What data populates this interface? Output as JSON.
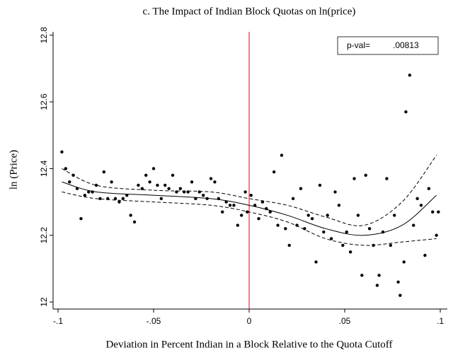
{
  "chart_data": {
    "type": "scatter",
    "title": "c. The Impact of Indian Block Quotas on ln(price)",
    "xlabel": "Deviation in Percent Indian in a Block Relative to the Quota Cutoff",
    "ylabel": "ln (Price)",
    "annotation": {
      "label": "p-val=",
      "value": ".00813"
    },
    "color": "#000000",
    "xlim": [
      -0.1026,
      0.1037
    ],
    "ylim": [
      11.979,
      12.81
    ],
    "xticks": [
      {
        "value": -0.1,
        "label": "-.1"
      },
      {
        "value": -0.05,
        "label": "-.05"
      },
      0,
      {
        "value": 0.05,
        "label": ".05"
      },
      {
        "value": 0.1,
        "label": ".1"
      }
    ],
    "yticks": [
      12,
      12.2,
      12.4,
      12.6,
      12.8
    ],
    "vline": {
      "value": 0,
      "color": "#d9304a"
    },
    "x": [
      -0.098,
      -0.096,
      -0.094,
      -0.092,
      -0.09,
      -0.088,
      -0.086,
      -0.084,
      -0.082,
      -0.08,
      -0.078,
      -0.076,
      -0.074,
      -0.072,
      -0.07,
      -0.068,
      -0.066,
      -0.064,
      -0.062,
      -0.06,
      -0.058,
      -0.056,
      -0.054,
      -0.052,
      -0.05,
      -0.048,
      -0.046,
      -0.044,
      -0.042,
      -0.04,
      -0.038,
      -0.036,
      -0.034,
      -0.032,
      -0.03,
      -0.028,
      -0.026,
      -0.024,
      -0.022,
      -0.02,
      -0.018,
      -0.016,
      -0.014,
      -0.012,
      -0.01,
      -0.008,
      -0.006,
      -0.004,
      -0.002,
      -0.001,
      0.001,
      0.003,
      0.005,
      0.007,
      0.009,
      0.011,
      0.013,
      0.015,
      0.017,
      0.019,
      0.021,
      0.023,
      0.025,
      0.027,
      0.029,
      0.031,
      0.033,
      0.035,
      0.037,
      0.039,
      0.041,
      0.043,
      0.045,
      0.047,
      0.049,
      0.051,
      0.053,
      0.055,
      0.057,
      0.059,
      0.061,
      0.063,
      0.065,
      0.067,
      0.068,
      0.07,
      0.072,
      0.074,
      0.076,
      0.078,
      0.079,
      0.081,
      0.082,
      0.084,
      0.086,
      0.088,
      0.09,
      0.092,
      0.094,
      0.096,
      0.098,
      0.099
    ],
    "values": [
      12.45,
      12.4,
      12.36,
      12.38,
      12.34,
      12.25,
      12.32,
      12.33,
      12.33,
      12.35,
      12.31,
      12.39,
      12.31,
      12.36,
      12.31,
      12.3,
      12.31,
      12.32,
      12.26,
      12.24,
      12.35,
      12.34,
      12.38,
      12.36,
      12.4,
      12.35,
      12.31,
      12.35,
      12.34,
      12.38,
      12.33,
      12.34,
      12.33,
      12.33,
      12.36,
      12.31,
      12.33,
      12.32,
      12.31,
      12.37,
      12.36,
      12.31,
      12.27,
      12.3,
      12.29,
      12.29,
      12.23,
      12.26,
      12.33,
      12.27,
      12.32,
      12.29,
      12.25,
      12.3,
      12.28,
      12.27,
      12.39,
      12.23,
      12.44,
      12.22,
      12.17,
      12.31,
      12.23,
      12.34,
      12.22,
      12.26,
      12.25,
      12.12,
      12.35,
      12.21,
      12.26,
      12.19,
      12.33,
      12.29,
      12.17,
      12.21,
      12.15,
      12.37,
      12.26,
      12.08,
      12.38,
      12.22,
      12.17,
      12.05,
      12.08,
      12.21,
      12.37,
      12.17,
      12.26,
      12.06,
      12.02,
      12.12,
      12.57,
      12.68,
      12.23,
      12.31,
      12.29,
      12.14,
      12.34,
      12.27,
      12.2,
      12.27
    ],
    "lines": [
      {
        "style": "solid",
        "x": [
          -0.098,
          -0.08,
          -0.05,
          -0.02,
          0,
          0.02,
          0.04,
          0.06,
          0.08,
          0.098
        ],
        "y": [
          12.36,
          12.33,
          12.32,
          12.31,
          12.29,
          12.26,
          12.22,
          12.2,
          12.23,
          12.32
        ]
      },
      {
        "style": "dashed",
        "x": [
          -0.098,
          -0.08,
          -0.05,
          -0.02,
          0,
          0.02,
          0.04,
          0.06,
          0.08,
          0.098
        ],
        "y": [
          12.4,
          12.35,
          12.335,
          12.33,
          12.31,
          12.29,
          12.255,
          12.23,
          12.3,
          12.44
        ]
      },
      {
        "style": "dashed",
        "x": [
          -0.098,
          -0.08,
          -0.05,
          -0.02,
          0,
          0.02,
          0.04,
          0.06,
          0.08,
          0.098
        ],
        "y": [
          12.33,
          12.31,
          12.3,
          12.29,
          12.27,
          12.24,
          12.19,
          12.17,
          12.18,
          12.19
        ]
      }
    ]
  }
}
